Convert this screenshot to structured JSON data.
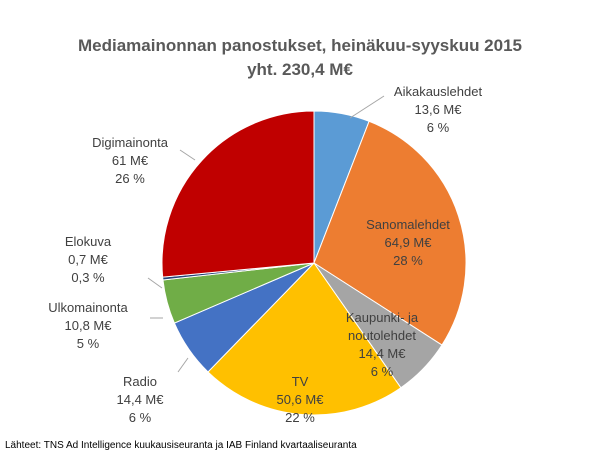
{
  "chart_data": {
    "type": "pie",
    "title": "Mediamainonnan panostukset, heinäkuu-syyskuu 2015",
    "subtitle": "yht. 230,4 M€",
    "categories": [
      "Aikakauslehdet",
      "Sanomalehdet",
      "Kaupunki- ja noutolehdet",
      "TV",
      "Radio",
      "Ulkomainonta",
      "Elokuva",
      "Digimainonta"
    ],
    "values": [
      13.6,
      64.9,
      14.4,
      50.6,
      14.4,
      10.8,
      0.7,
      61
    ],
    "value_labels": [
      "13,6 M€",
      "64,9 M€",
      "14,4 M€",
      "50,6 M€",
      "14,4 M€",
      "10,8 M€",
      "0,7 M€",
      "61 M€"
    ],
    "percentages": [
      6,
      28,
      6,
      22,
      6,
      5,
      0.3,
      26
    ],
    "percentage_labels": [
      "6 %",
      "28 %",
      "6 %",
      "22 %",
      "6 %",
      "5 %",
      "0,3 %",
      "26 %"
    ],
    "colors": [
      "#5b9bd5",
      "#ed7d31",
      "#a5a5a5",
      "#ffc000",
      "#4472c4",
      "#70ad47",
      "#264478",
      "#c00000"
    ],
    "source": "Lähteet: TNS Ad Intelligence kuukausiseuranta ja IAB Finland kvartaaliseuranta"
  }
}
